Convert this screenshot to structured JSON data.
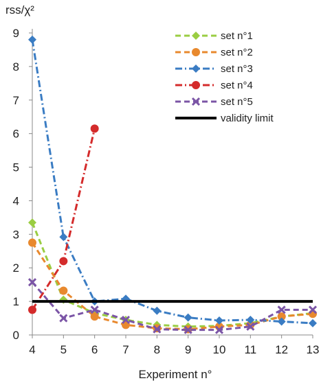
{
  "chart_data": {
    "type": "line",
    "ylabel": "rss/χ²",
    "xlabel": "Experiment n°",
    "x_ticks": [
      4,
      5,
      6,
      7,
      8,
      9,
      10,
      11,
      12,
      13
    ],
    "y_ticks": [
      0,
      1,
      2,
      3,
      4,
      5,
      6,
      7,
      8,
      9
    ],
    "xlim": [
      4,
      13
    ],
    "ylim": [
      0,
      9
    ],
    "grid": false,
    "legend_position": "top-right",
    "series": [
      {
        "name": "set n°1",
        "color": "#9acd42",
        "marker": "diamond",
        "dash": "dashed",
        "x": [
          4,
          5,
          6,
          7,
          8,
          9,
          10,
          11,
          12,
          13
        ],
        "y": [
          3.35,
          1.05,
          0.65,
          0.45,
          0.3,
          0.25,
          0.27,
          0.35,
          0.55,
          0.65
        ]
      },
      {
        "name": "set n°2",
        "color": "#e8892e",
        "marker": "circle",
        "dash": "dashed",
        "x": [
          4,
          5,
          6,
          7,
          8,
          9,
          10,
          11,
          12,
          13
        ],
        "y": [
          2.75,
          1.32,
          0.55,
          0.3,
          0.2,
          0.17,
          0.25,
          0.3,
          0.55,
          0.63
        ]
      },
      {
        "name": "set n°3",
        "color": "#3a7cc3",
        "marker": "diamond",
        "dash": "dash-dot",
        "x": [
          4,
          5,
          6,
          7,
          8,
          9,
          10,
          11,
          12,
          13
        ],
        "y": [
          8.8,
          2.92,
          1.0,
          1.08,
          0.72,
          0.52,
          0.43,
          0.45,
          0.4,
          0.35
        ]
      },
      {
        "name": "set n°4",
        "color": "#d42b2b",
        "marker": "circle",
        "dash": "dash-dot",
        "x": [
          4,
          5,
          6
        ],
        "y": [
          0.75,
          2.2,
          6.15
        ]
      },
      {
        "name": "set n°5",
        "color": "#7b55a6",
        "marker": "cross",
        "dash": "dashed",
        "x": [
          4,
          5,
          6,
          7,
          8,
          9,
          10,
          11,
          12,
          13
        ],
        "y": [
          1.57,
          0.5,
          0.75,
          0.45,
          0.17,
          0.15,
          0.15,
          0.25,
          0.75,
          0.75
        ]
      },
      {
        "name": "validity limit",
        "color": "#000000",
        "marker": "none",
        "dash": "solid",
        "x": [
          4,
          13
        ],
        "y": [
          1,
          1
        ]
      }
    ]
  }
}
